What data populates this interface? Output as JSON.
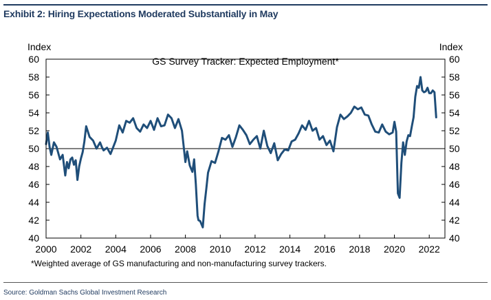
{
  "exhibit": {
    "title": "Exhibit 2: Hiring Expectations Moderated Substantially in May",
    "footnote": "*Weighted average of GS manufacturing and non-manufacturing survey trackers.",
    "source": "Source: Goldman Sachs Global Investment Research"
  },
  "colors": {
    "line": "#1f4e79",
    "reference": "#000000",
    "title": "#1f3a5f"
  },
  "chart_data": {
    "type": "line",
    "title": "GS Survey Tracker: Expected Employment*",
    "ylabel_left": "Index",
    "ylabel_right": "Index",
    "ylim": [
      40,
      60
    ],
    "xlim": [
      2000,
      2022.9
    ],
    "y_ticks": [
      40,
      42,
      44,
      46,
      48,
      50,
      52,
      54,
      56,
      58,
      60
    ],
    "x_ticks": [
      2000,
      2002,
      2004,
      2006,
      2008,
      2010,
      2012,
      2014,
      2016,
      2018,
      2020,
      2022
    ],
    "reference_line": 50,
    "series": [
      {
        "name": "Expected Employment",
        "x": [
          2000.0,
          2000.1,
          2000.2,
          2000.3,
          2000.45,
          2000.6,
          2000.8,
          2000.95,
          2001.1,
          2001.2,
          2001.3,
          2001.4,
          2001.5,
          2001.6,
          2001.7,
          2001.8,
          2001.9,
          2002.0,
          2002.1,
          2002.2,
          2002.3,
          2002.5,
          2002.7,
          2002.9,
          2003.1,
          2003.2,
          2003.3,
          2003.5,
          2003.7,
          2003.9,
          2004.0,
          2004.2,
          2004.4,
          2004.6,
          2004.8,
          2005.0,
          2005.2,
          2005.4,
          2005.6,
          2005.8,
          2006.0,
          2006.2,
          2006.4,
          2006.6,
          2006.8,
          2007.0,
          2007.2,
          2007.4,
          2007.6,
          2007.8,
          2008.0,
          2008.1,
          2008.25,
          2008.4,
          2008.5,
          2008.6,
          2008.7,
          2008.75,
          2008.85,
          2009.0,
          2009.1,
          2009.2,
          2009.3,
          2009.5,
          2009.7,
          2009.9,
          2010.1,
          2010.3,
          2010.5,
          2010.7,
          2010.9,
          2011.1,
          2011.3,
          2011.5,
          2011.7,
          2011.9,
          2012.1,
          2012.3,
          2012.5,
          2012.7,
          2012.9,
          2013.1,
          2013.3,
          2013.5,
          2013.7,
          2013.9,
          2014.1,
          2014.3,
          2014.5,
          2014.7,
          2014.9,
          2015.1,
          2015.3,
          2015.5,
          2015.7,
          2015.9,
          2016.1,
          2016.3,
          2016.5,
          2016.7,
          2016.9,
          2017.1,
          2017.3,
          2017.5,
          2017.7,
          2017.9,
          2018.1,
          2018.3,
          2018.5,
          2018.7,
          2018.9,
          2019.1,
          2019.3,
          2019.5,
          2019.7,
          2019.9,
          2020.0,
          2020.1,
          2020.2,
          2020.3,
          2020.4,
          2020.5,
          2020.6,
          2020.7,
          2020.8,
          2020.9,
          2021.0,
          2021.1,
          2021.2,
          2021.3,
          2021.4,
          2021.5,
          2021.6,
          2021.7,
          2021.8,
          2021.9,
          2022.0,
          2022.1,
          2022.2,
          2022.3,
          2022.4
        ],
        "values": [
          50.5,
          51.8,
          50.2,
          49.3,
          50.7,
          50.2,
          48.8,
          49.3,
          47.0,
          48.5,
          47.8,
          48.8,
          49.0,
          48.2,
          48.7,
          46.5,
          48.0,
          48.9,
          49.6,
          50.8,
          52.5,
          51.3,
          50.9,
          50.0,
          50.7,
          50.2,
          49.8,
          50.1,
          49.4,
          50.4,
          50.9,
          52.6,
          51.8,
          53.1,
          52.9,
          53.4,
          52.3,
          51.9,
          52.7,
          52.3,
          53.1,
          52.1,
          53.4,
          52.5,
          52.6,
          53.8,
          53.4,
          52.3,
          53.3,
          52.0,
          48.5,
          49.7,
          48.1,
          47.4,
          48.8,
          46.0,
          42.5,
          42.0,
          41.9,
          41.2,
          43.8,
          45.5,
          47.3,
          48.6,
          48.4,
          49.7,
          51.2,
          51.0,
          51.5,
          50.2,
          51.3,
          52.6,
          52.1,
          51.5,
          50.5,
          51.0,
          51.4,
          50.0,
          52.0,
          50.3,
          49.5,
          50.6,
          48.7,
          49.4,
          49.9,
          49.8,
          50.8,
          51.0,
          51.7,
          52.6,
          52.1,
          53.1,
          52.0,
          52.3,
          51.0,
          51.4,
          50.4,
          50.9,
          49.7,
          52.4,
          53.8,
          53.3,
          53.6,
          54.0,
          54.7,
          54.4,
          54.6,
          53.8,
          53.7,
          52.7,
          51.9,
          51.8,
          52.7,
          51.9,
          51.6,
          51.8,
          53.0,
          51.9,
          45.0,
          44.5,
          48.4,
          50.7,
          49.3,
          50.8,
          51.5,
          51.4,
          52.5,
          53.5,
          55.8,
          57.0,
          56.8,
          58.0,
          56.5,
          56.3,
          56.4,
          56.8,
          56.2,
          56.2,
          56.5,
          56.3,
          53.5
        ]
      }
    ]
  }
}
